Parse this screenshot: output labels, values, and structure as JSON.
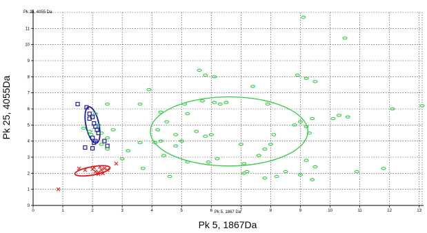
{
  "chart_data": {
    "type": "scatter",
    "inner_xlabel": "Pk 5, 1867 Da",
    "inner_ylabel": "Pk 25, 4055 Da",
    "xlabel": "Pk 5, 1867Da",
    "ylabel": "Pk 25, 4055Da",
    "xlim": [
      0,
      13.1
    ],
    "ylim": [
      0,
      12
    ],
    "x_ticks": [
      0,
      1,
      2,
      3,
      4,
      5,
      6,
      7,
      8,
      9,
      10,
      11,
      12,
      13
    ],
    "y_ticks": [
      0,
      1,
      2,
      3,
      4,
      5,
      6,
      7,
      8,
      9,
      10,
      11,
      12
    ],
    "grid": true,
    "series": [
      {
        "marker": "square",
        "color": "#1a1aa6",
        "points": [
          [
            1.5,
            6.3
          ],
          [
            1.8,
            6.1
          ],
          [
            1.9,
            5.7
          ],
          [
            1.9,
            5.4
          ],
          [
            2.0,
            5.5
          ],
          [
            2.05,
            5.1
          ],
          [
            2.1,
            4.9
          ],
          [
            2.15,
            4.7
          ],
          [
            2.2,
            4.5
          ],
          [
            2.0,
            4.2
          ],
          [
            2.1,
            4.0
          ],
          [
            2.05,
            3.9
          ],
          [
            2.4,
            4.0
          ],
          [
            1.75,
            3.6
          ],
          [
            2.0,
            3.55
          ],
          [
            2.5,
            3.7
          ]
        ],
        "ellipse": {
          "cx": 2.0,
          "cy": 5.0,
          "rx": 0.22,
          "ry": 1.15,
          "angle_deg": -12
        }
      },
      {
        "marker": "cross",
        "color": "#e01a1a",
        "points": [
          [
            0.85,
            1.0
          ],
          [
            1.55,
            2.3
          ],
          [
            1.75,
            2.2
          ],
          [
            2.0,
            2.25
          ],
          [
            2.1,
            2.1
          ],
          [
            2.2,
            2.05
          ],
          [
            2.3,
            2.2
          ],
          [
            2.4,
            2.3
          ],
          [
            2.5,
            2.2
          ],
          [
            2.2,
            1.95
          ],
          [
            2.35,
            2.0
          ],
          [
            2.05,
            2.35
          ],
          [
            2.8,
            2.6
          ],
          [
            2.25,
            2.4
          ]
        ],
        "ellipse": {
          "cx": 2.0,
          "cy": 2.15,
          "rx": 0.6,
          "ry": 0.26,
          "angle_deg": -10
        }
      },
      {
        "marker": "ellipse",
        "color": "#2ecc40",
        "points": [
          [
            1.7,
            4.8
          ],
          [
            1.9,
            4.6
          ],
          [
            1.95,
            4.4
          ],
          [
            2.1,
            5.7
          ],
          [
            2.2,
            5.0
          ],
          [
            2.3,
            4.5
          ],
          [
            2.3,
            3.8
          ],
          [
            2.5,
            3.5
          ],
          [
            2.5,
            4.2
          ],
          [
            2.5,
            6.3
          ],
          [
            2.7,
            4.7
          ],
          [
            3.0,
            2.9
          ],
          [
            3.2,
            3.4
          ],
          [
            3.6,
            3.9
          ],
          [
            3.6,
            6.3
          ],
          [
            3.7,
            2.3
          ],
          [
            3.9,
            7.2
          ],
          [
            4.1,
            3.9
          ],
          [
            4.2,
            4.7
          ],
          [
            4.3,
            5.8
          ],
          [
            4.3,
            4.0
          ],
          [
            4.4,
            3.1
          ],
          [
            4.5,
            5.2
          ],
          [
            4.6,
            1.8
          ],
          [
            4.8,
            4.4
          ],
          [
            4.8,
            3.7
          ],
          [
            5.0,
            4.0
          ],
          [
            5.1,
            6.3
          ],
          [
            5.2,
            5.7
          ],
          [
            5.2,
            2.7
          ],
          [
            5.5,
            4.6
          ],
          [
            5.6,
            8.4
          ],
          [
            5.7,
            6.5
          ],
          [
            5.8,
            8.1
          ],
          [
            5.8,
            4.3
          ],
          [
            5.9,
            2.7
          ],
          [
            6.0,
            4.4
          ],
          [
            6.1,
            8.0
          ],
          [
            6.1,
            6.4
          ],
          [
            6.2,
            2.9
          ],
          [
            6.3,
            6.3
          ],
          [
            6.5,
            6.4
          ],
          [
            7.0,
            3.8
          ],
          [
            7.1,
            2.6
          ],
          [
            7.1,
            2.0
          ],
          [
            7.2,
            2.1
          ],
          [
            7.4,
            7.4
          ],
          [
            7.6,
            3.1
          ],
          [
            7.8,
            1.7
          ],
          [
            7.8,
            3.5
          ],
          [
            7.9,
            6.3
          ],
          [
            8.0,
            3.8
          ],
          [
            8.1,
            4.4
          ],
          [
            8.2,
            1.8
          ],
          [
            8.5,
            2.1
          ],
          [
            8.8,
            5.0
          ],
          [
            8.9,
            8.1
          ],
          [
            9.0,
            1.9
          ],
          [
            9.0,
            5.2
          ],
          [
            9.1,
            11.7
          ],
          [
            9.2,
            7.9
          ],
          [
            9.2,
            2.8
          ],
          [
            9.2,
            4.9
          ],
          [
            9.3,
            4.5
          ],
          [
            9.4,
            1.6
          ],
          [
            9.4,
            5.4
          ],
          [
            9.5,
            2.4
          ],
          [
            9.5,
            7.7
          ],
          [
            10.1,
            5.4
          ],
          [
            10.3,
            5.6
          ],
          [
            10.5,
            10.4
          ],
          [
            10.6,
            5.5
          ],
          [
            10.9,
            2.1
          ],
          [
            11.8,
            2.3
          ],
          [
            12.1,
            6.0
          ],
          [
            13.1,
            6.2
          ]
        ],
        "ellipse": {
          "cx": 6.6,
          "cy": 4.6,
          "rx": 2.65,
          "ry": 2.15,
          "angle_deg": 0
        }
      }
    ]
  }
}
